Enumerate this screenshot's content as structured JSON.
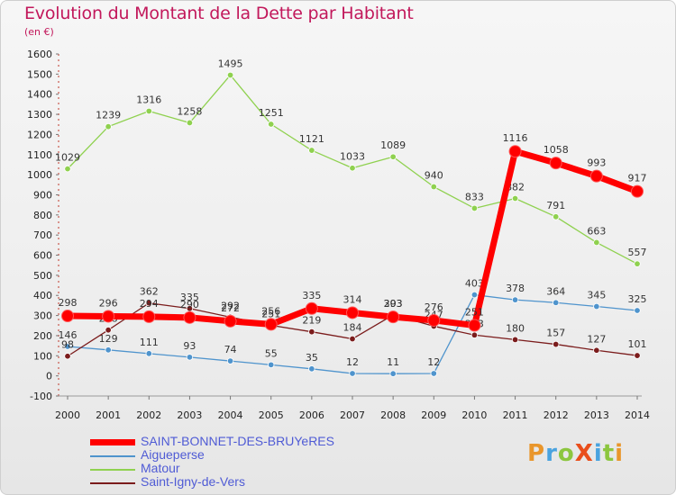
{
  "title": "Evolution du Montant de la Dette par Habitant",
  "subtitle": "(en €)",
  "logo": {
    "text": "ProXiti",
    "letters": [
      {
        "ch": "P",
        "color": "#e9962b"
      },
      {
        "ch": "r",
        "color": "#4aa3df"
      },
      {
        "ch": "o",
        "color": "#8cc63f"
      },
      {
        "ch": "X",
        "color": "#e94e1b"
      },
      {
        "ch": "i",
        "color": "#4aa3df"
      },
      {
        "ch": "t",
        "color": "#8cc63f"
      },
      {
        "ch": "i",
        "color": "#e9962b"
      }
    ]
  },
  "chart_data": {
    "type": "line",
    "title": "Evolution du Montant de la Dette par Habitant",
    "subtitle": "(en €)",
    "x": [
      "2000",
      "2001",
      "2002",
      "2003",
      "2004",
      "2005",
      "2006",
      "2007",
      "2008",
      "2009",
      "2010",
      "2011",
      "2012",
      "2013",
      "2014"
    ],
    "ylim": [
      -100,
      1600
    ],
    "yticks": [
      -100,
      0,
      100,
      200,
      300,
      400,
      500,
      600,
      700,
      800,
      900,
      1000,
      1100,
      1200,
      1300,
      1400,
      1500,
      1600
    ],
    "grid": false,
    "legend_position": "bottom",
    "series": [
      {
        "name": "SAINT-BONNET-DES-BRUYeRES",
        "color": "#ff0000",
        "values": [
          298,
          296,
          294,
          290,
          272,
          256,
          335,
          314,
          293,
          276,
          251,
          1116,
          1058,
          993,
          917
        ]
      },
      {
        "name": "Aigueperse",
        "color": "#4f94cd",
        "values": [
          146,
          129,
          111,
          93,
          74,
          55,
          35,
          12,
          11,
          12,
          403,
          378,
          364,
          345,
          325
        ]
      },
      {
        "name": "Matour",
        "color": "#8fd14f",
        "values": [
          1029,
          1239,
          1316,
          1258,
          1495,
          1251,
          1121,
          1033,
          1089,
          940,
          833,
          882,
          791,
          663,
          557
        ]
      },
      {
        "name": "Saint-Igny-de-Vers",
        "color": "#7b1c1c",
        "values": [
          98,
          228,
          362,
          335,
          292,
          251,
          219,
          184,
          303,
          247,
          203,
          180,
          157,
          127,
          101
        ]
      }
    ]
  }
}
